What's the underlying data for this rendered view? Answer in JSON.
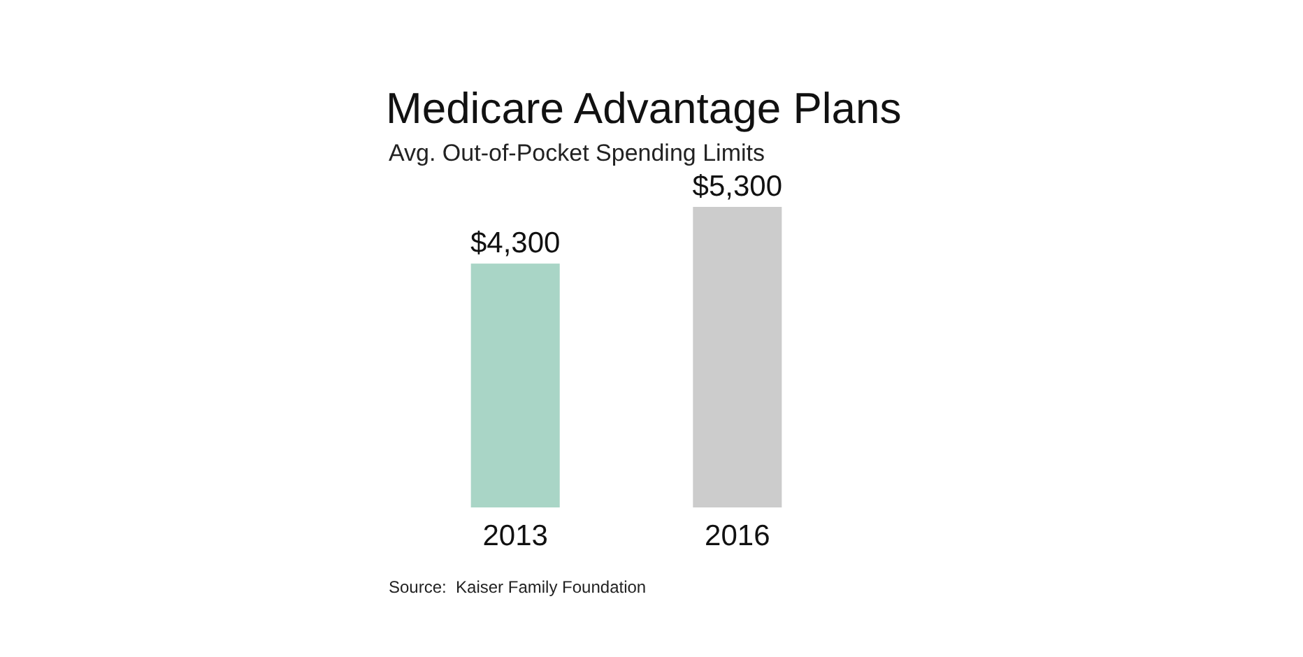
{
  "chart_data": {
    "type": "bar",
    "title": "Medicare Advantage Plans",
    "subtitle": "Avg. Out-of-Pocket Spending Limits",
    "categories": [
      "2013",
      "2016"
    ],
    "values": [
      4300,
      5300
    ],
    "colors": [
      "#a9d5c6",
      "#cccccc"
    ],
    "value_labels": [
      "$4,300",
      "$5,300"
    ],
    "annotations": [
      "Source:  Kaiser Family Foundation"
    ]
  }
}
